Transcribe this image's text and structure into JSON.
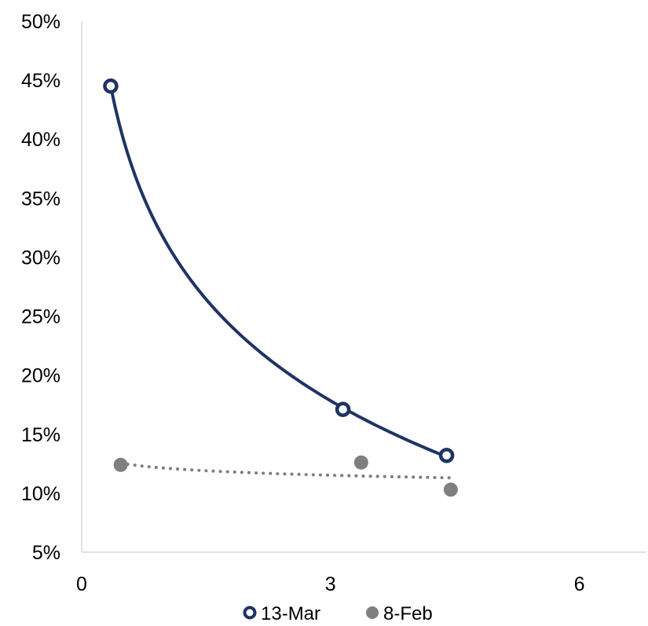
{
  "chart_data": {
    "type": "scatter",
    "title": "",
    "xlabel": "",
    "ylabel": "",
    "xlim": [
      0,
      6.8
    ],
    "ylim": [
      0.05,
      0.5
    ],
    "x_ticks": [
      0,
      3,
      6
    ],
    "x_tick_labels": [
      "0",
      "3",
      "6"
    ],
    "y_ticks": [
      0.05,
      0.1,
      0.15,
      0.2,
      0.25,
      0.3,
      0.35,
      0.4,
      0.45,
      0.5
    ],
    "y_tick_labels": [
      "5%",
      "10%",
      "15%",
      "20%",
      "25%",
      "30%",
      "35%",
      "40%",
      "45%",
      "50%"
    ],
    "grid": false,
    "legend_position": "bottom",
    "series": [
      {
        "name": "13-Mar",
        "color": "#1f3364",
        "marker": "ring",
        "trendline": "logarithmic",
        "trendline_style": "solid",
        "points": [
          {
            "x": 0.35,
            "y": 0.445
          },
          {
            "x": 3.15,
            "y": 0.171
          },
          {
            "x": 4.4,
            "y": 0.132
          }
        ]
      },
      {
        "name": "8-Feb",
        "color": "#7f7f7f",
        "marker": "circle",
        "trendline": "logarithmic",
        "trendline_style": "dotted",
        "points": [
          {
            "x": 0.47,
            "y": 0.124
          },
          {
            "x": 3.37,
            "y": 0.126
          },
          {
            "x": 4.45,
            "y": 0.103
          }
        ]
      }
    ]
  }
}
